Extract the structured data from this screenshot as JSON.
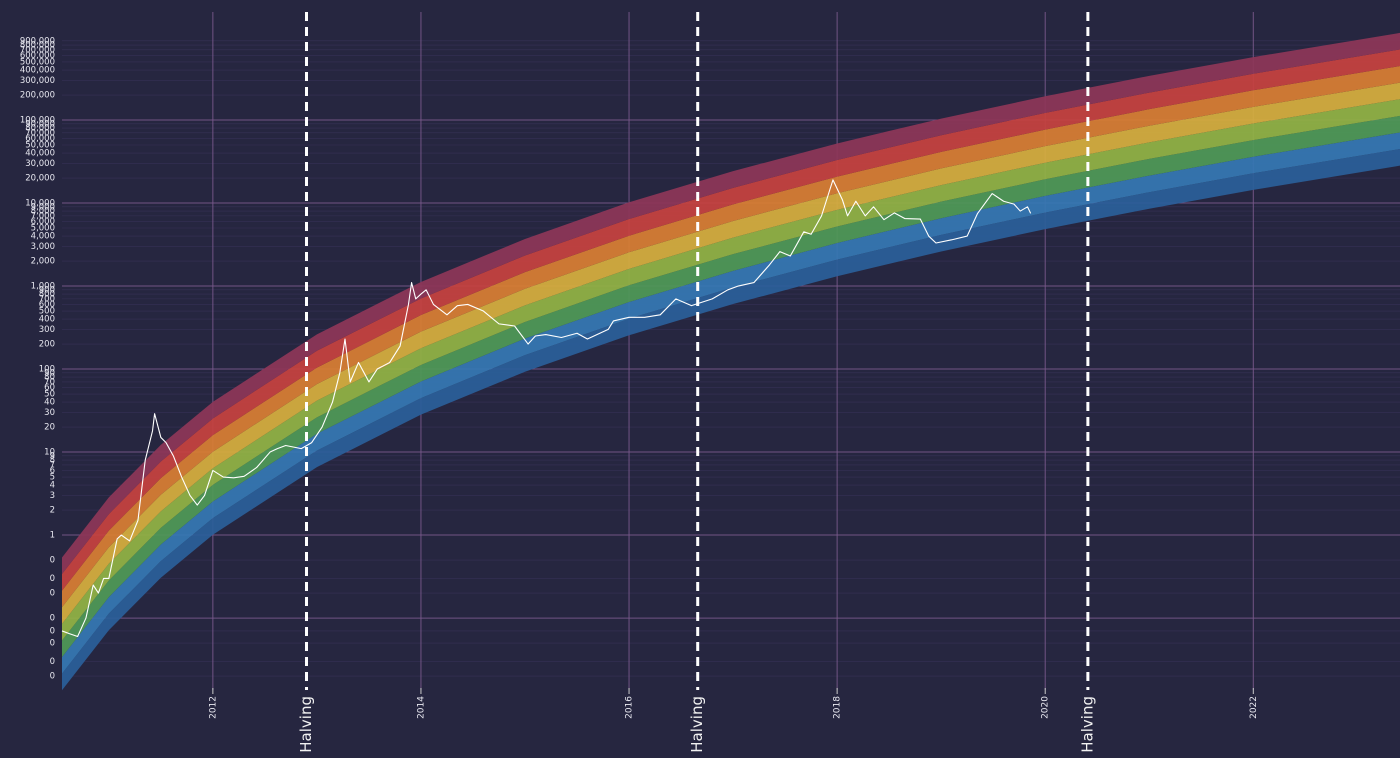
{
  "chart_data": {
    "type": "line",
    "log_scale_y": true,
    "grid": true,
    "background": "#262640",
    "xlim": [
      2010.55,
      2023.41
    ],
    "ylim": [
      0.0136,
      2790000
    ],
    "xticks": [
      2012,
      2014,
      2016,
      2018,
      2020,
      2022
    ],
    "yticks": [
      {
        "value": 900000,
        "label": "900,000"
      },
      {
        "value": 800000,
        "label": "800,000"
      },
      {
        "value": 700000,
        "label": "700,000"
      },
      {
        "value": 600000,
        "label": "600,000"
      },
      {
        "value": 500000,
        "label": "500,000"
      },
      {
        "value": 400000,
        "label": "400,000"
      },
      {
        "value": 300000,
        "label": "300,000"
      },
      {
        "value": 200000,
        "label": "200,000"
      },
      {
        "value": 100000,
        "label": "100,000"
      },
      {
        "value": 90000,
        "label": "90,000"
      },
      {
        "value": 80000,
        "label": "80,000"
      },
      {
        "value": 70000,
        "label": "70,000"
      },
      {
        "value": 60000,
        "label": "60,000"
      },
      {
        "value": 50000,
        "label": "50,000"
      },
      {
        "value": 40000,
        "label": "40,000"
      },
      {
        "value": 30000,
        "label": "30,000"
      },
      {
        "value": 20000,
        "label": "20,000"
      },
      {
        "value": 10000,
        "label": "10,000"
      },
      {
        "value": 9000,
        "label": "9,000"
      },
      {
        "value": 8000,
        "label": "8,000"
      },
      {
        "value": 7000,
        "label": "7,000"
      },
      {
        "value": 6000,
        "label": "6,000"
      },
      {
        "value": 5000,
        "label": "5,000"
      },
      {
        "value": 4000,
        "label": "4,000"
      },
      {
        "value": 3000,
        "label": "3,000"
      },
      {
        "value": 2000,
        "label": "2,000"
      },
      {
        "value": 1000,
        "label": "1,000"
      },
      900,
      800,
      700,
      600,
      500,
      400,
      300,
      200,
      100,
      90,
      80,
      70,
      60,
      50,
      40,
      30,
      20,
      10,
      9,
      8,
      7,
      6,
      5,
      4,
      3,
      2,
      1,
      {
        "value": 0.5,
        "label": "0"
      },
      {
        "value": 0.3,
        "label": "0"
      },
      {
        "value": 0.2,
        "label": "0"
      },
      {
        "value": 0.1,
        "label": "0"
      },
      {
        "value": 0.07,
        "label": "0"
      },
      {
        "value": 0.05,
        "label": "0"
      },
      {
        "value": 0.03,
        "label": "0"
      },
      {
        "value": 0.02,
        "label": "0"
      }
    ],
    "bands": {
      "x": [
        2010.55,
        2011,
        2011.5,
        2012,
        2013,
        2014,
        2015,
        2016,
        2017,
        2018,
        2019,
        2020,
        2021,
        2022,
        2023.41
      ],
      "colors": [
        "#2a5f9a",
        "#3578b4",
        "#4f9a57",
        "#93b444",
        "#d8b03e",
        "#da7f33",
        "#c8423f",
        "#8e3658"
      ],
      "edges": [
        [
          0.0135,
          0.0714,
          0.306,
          1.01,
          6.59,
          28.2,
          92.7,
          255,
          607,
          1310,
          2610,
          4840,
          8530,
          14400,
          28200
        ],
        [
          0.0214,
          0.113,
          0.485,
          1.6,
          10.4,
          44.7,
          147,
          404,
          962,
          2080,
          4130,
          7670,
          13500,
          22800,
          44700
        ],
        [
          0.0339,
          0.179,
          0.769,
          2.54,
          16.6,
          70.8,
          233,
          641,
          1520,
          3300,
          6550,
          12200,
          21400,
          36100,
          70800
        ],
        [
          0.0537,
          0.284,
          1.22,
          4.02,
          26.2,
          112,
          369,
          1020,
          2420,
          5220,
          10400,
          19300,
          34000,
          57300,
          112000
        ],
        [
          0.0852,
          0.451,
          1.93,
          6.37,
          41.6,
          178,
          585,
          1610,
          3830,
          8280,
          16400,
          30600,
          53800,
          90800,
          178000
        ],
        [
          0.135,
          0.714,
          3.06,
          10.1,
          65.9,
          282,
          927,
          2550,
          6070,
          13100,
          26100,
          48400,
          85300,
          144000,
          282000
        ],
        [
          0.214,
          1.13,
          4.85,
          16.0,
          104,
          447,
          1470,
          4040,
          9620,
          20800,
          41300,
          76700,
          135000,
          228000,
          447000
        ],
        [
          0.339,
          1.79,
          7.69,
          25.4,
          166,
          708,
          2330,
          6410,
          15200,
          33000,
          65500,
          122000,
          214000,
          361000,
          708000
        ],
        [
          0.537,
          2.84,
          12.2,
          40.2,
          262,
          1120,
          3690,
          10200,
          24200,
          52200,
          104000,
          193000,
          340000,
          573000,
          1120000
        ]
      ]
    },
    "series": [
      {
        "color": "#ffffff",
        "x": [
          2010.55,
          2010.62,
          2010.7,
          2010.78,
          2010.85,
          2010.9,
          2010.95,
          2011.0,
          2011.08,
          2011.12,
          2011.2,
          2011.28,
          2011.35,
          2011.42,
          2011.44,
          2011.5,
          2011.55,
          2011.62,
          2011.7,
          2011.78,
          2011.85,
          2011.92,
          2012.0,
          2012.1,
          2012.2,
          2012.3,
          2012.42,
          2012.55,
          2012.62,
          2012.7,
          2012.85,
          2012.95,
          2013.05,
          2013.15,
          2013.22,
          2013.27,
          2013.32,
          2013.4,
          2013.5,
          2013.58,
          2013.7,
          2013.8,
          2013.88,
          2013.91,
          2013.95,
          2014.0,
          2014.05,
          2014.12,
          2014.25,
          2014.35,
          2014.45,
          2014.6,
          2014.75,
          2014.9,
          2015.03,
          2015.1,
          2015.2,
          2015.35,
          2015.5,
          2015.6,
          2015.8,
          2015.85,
          2016.0,
          2016.15,
          2016.3,
          2016.45,
          2016.6,
          2016.8,
          2016.95,
          2017.05,
          2017.2,
          2017.35,
          2017.45,
          2017.55,
          2017.68,
          2017.75,
          2017.85,
          2017.96,
          2018.05,
          2018.1,
          2018.18,
          2018.27,
          2018.35,
          2018.45,
          2018.55,
          2018.65,
          2018.8,
          2018.88,
          2018.95,
          2019.1,
          2019.25,
          2019.35,
          2019.49,
          2019.6,
          2019.7,
          2019.76,
          2019.83,
          2019.86
        ],
        "values": [
          0.07,
          0.065,
          0.06,
          0.1,
          0.25,
          0.2,
          0.3,
          0.3,
          0.9,
          1.0,
          0.85,
          1.5,
          8,
          18,
          29,
          15,
          13,
          9,
          5,
          3,
          2.3,
          3,
          6,
          5,
          4.9,
          5.1,
          6.5,
          10,
          11,
          12,
          11,
          13,
          20,
          40,
          90,
          230,
          70,
          120,
          70,
          100,
          120,
          190,
          600,
          1100,
          700,
          800,
          900,
          600,
          450,
          580,
          600,
          500,
          350,
          330,
          200,
          250,
          260,
          240,
          270,
          230,
          300,
          380,
          420,
          420,
          450,
          700,
          580,
          700,
          900,
          1000,
          1100,
          1800,
          2600,
          2300,
          4500,
          4200,
          7000,
          19000,
          11000,
          7000,
          10500,
          7000,
          9000,
          6300,
          7600,
          6500,
          6400,
          4000,
          3300,
          3600,
          4000,
          7500,
          13000,
          10500,
          9700,
          8000,
          9000,
          7500
        ]
      }
    ],
    "halvings": [
      {
        "x": 2012.9,
        "label": "Halving"
      },
      {
        "x": 2016.66,
        "label": "Halving"
      },
      {
        "x": 2020.41,
        "label": "Halving"
      }
    ]
  }
}
